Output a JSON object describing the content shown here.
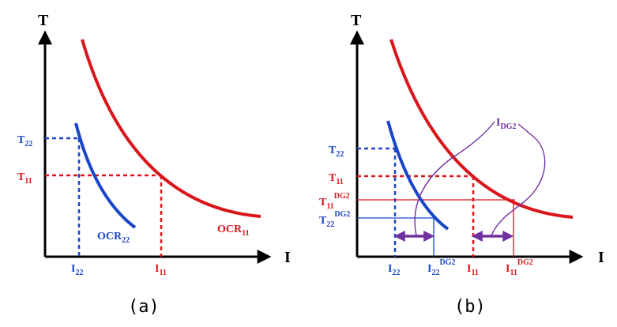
{
  "colors": {
    "blue": "#1a45c8",
    "red": "#d9161c",
    "purple": "#7030a0",
    "axis": "#000000"
  },
  "panel_a": {
    "caption": "(a)",
    "axis_t": "T",
    "axis_i": "I",
    "t22": {
      "base": "T",
      "sub": "22"
    },
    "t11": {
      "base": "T",
      "sub": "11"
    },
    "i22": {
      "base": "I",
      "sub": "22"
    },
    "i11": {
      "base": "I",
      "sub": "11"
    },
    "ocr22": {
      "base": "OCR",
      "sub": "22"
    },
    "ocr11": {
      "base": "OCR",
      "sub": "11"
    }
  },
  "panel_b": {
    "caption": "(b)",
    "axis_t": "T",
    "axis_i": "I",
    "t22": {
      "base": "T",
      "sub": "22"
    },
    "t11": {
      "base": "T",
      "sub": "11"
    },
    "t11_dg2": {
      "base": "T",
      "sub": "11",
      "sup": "DG2"
    },
    "t22_dg2": {
      "base": "T",
      "sub": "22",
      "sup": "DG2"
    },
    "i22": {
      "base": "I",
      "sub": "22"
    },
    "i22_dg2": {
      "base": "I",
      "sub": "22",
      "sup": "DG2"
    },
    "i11": {
      "base": "I",
      "sub": "11"
    },
    "i11_dg2": {
      "base": "I",
      "sub": "11",
      "sup": "DG2"
    },
    "idg2": {
      "base": "I",
      "sub": "DG2"
    }
  }
}
